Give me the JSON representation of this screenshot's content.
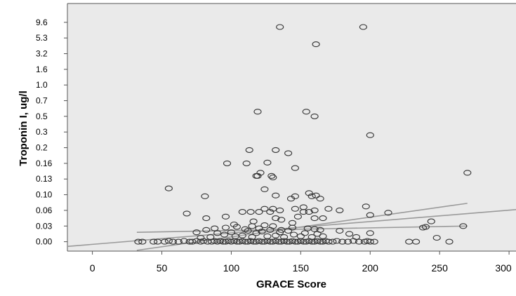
{
  "colors": {
    "plot_background": "#eaeaea",
    "frame": "#555555",
    "marker": "#333333",
    "fit_lines": "#9a9a9a",
    "text": "#000000"
  },
  "chart_data": {
    "type": "scatter",
    "title": "",
    "xlabel": "GRACE Score",
    "ylabel": "Troponin I, ug/l",
    "grid": false,
    "legend": "none",
    "marker": "open-circle",
    "xlim": [
      -18,
      305
    ],
    "xticks": [
      0,
      50,
      100,
      150,
      200,
      250,
      300
    ],
    "ytick_labels": [
      "0.00",
      "0.03",
      "0.06",
      "0.10",
      "0.13",
      "0.16",
      "0.2",
      "0.3",
      "0.5",
      "0.7",
      "1.0",
      "1.6",
      "3.2",
      "5.3",
      "9.6"
    ],
    "y_scale_note": "y axis is ordinal: equally spaced tick labels; y values below are expressed in tick-index units (0 = 0.00, 14 = 9.6)",
    "ylim_index": [
      -0.6,
      15.2
    ],
    "points": [
      [
        33,
        0
      ],
      [
        36,
        0
      ],
      [
        44,
        0
      ],
      [
        47,
        0
      ],
      [
        52,
        0
      ],
      [
        55,
        0.05
      ],
      [
        58,
        0
      ],
      [
        62,
        0
      ],
      [
        66,
        0.05
      ],
      [
        70,
        0
      ],
      [
        72,
        0
      ],
      [
        75,
        0.05
      ],
      [
        78,
        0
      ],
      [
        80,
        0.05
      ],
      [
        83,
        0
      ],
      [
        86,
        0
      ],
      [
        88,
        0.05
      ],
      [
        90,
        0
      ],
      [
        92,
        0.05
      ],
      [
        94,
        0
      ],
      [
        96,
        0
      ],
      [
        98,
        0.05
      ],
      [
        100,
        0
      ],
      [
        102,
        0.05
      ],
      [
        104,
        0
      ],
      [
        106,
        0
      ],
      [
        108,
        0.05
      ],
      [
        110,
        0
      ],
      [
        112,
        0
      ],
      [
        114,
        0.05
      ],
      [
        116,
        0
      ],
      [
        118,
        0
      ],
      [
        120,
        0.05
      ],
      [
        122,
        0
      ],
      [
        124,
        0
      ],
      [
        126,
        0.05
      ],
      [
        128,
        0
      ],
      [
        130,
        0
      ],
      [
        132,
        0.05
      ],
      [
        134,
        0
      ],
      [
        136,
        0
      ],
      [
        138,
        0.05
      ],
      [
        140,
        0
      ],
      [
        142,
        0
      ],
      [
        144,
        0.05
      ],
      [
        146,
        0
      ],
      [
        148,
        0
      ],
      [
        150,
        0.05
      ],
      [
        152,
        0
      ],
      [
        154,
        0
      ],
      [
        156,
        0.05
      ],
      [
        158,
        0
      ],
      [
        160,
        0
      ],
      [
        162,
        0.05
      ],
      [
        164,
        0
      ],
      [
        166,
        0
      ],
      [
        168,
        0.05
      ],
      [
        170,
        0
      ],
      [
        173,
        0
      ],
      [
        176,
        0.05
      ],
      [
        180,
        0
      ],
      [
        184,
        0
      ],
      [
        188,
        0.05
      ],
      [
        192,
        0
      ],
      [
        196,
        0
      ],
      [
        198,
        0.05
      ],
      [
        200,
        0
      ],
      [
        203,
        0
      ],
      [
        228,
        0
      ],
      [
        233,
        0
      ],
      [
        257,
        0
      ],
      [
        78,
        0.25
      ],
      [
        85,
        0.3
      ],
      [
        90,
        0.55
      ],
      [
        95,
        0.45
      ],
      [
        100,
        0.6
      ],
      [
        103,
        0.35
      ],
      [
        108,
        0.4
      ],
      [
        112,
        0.7
      ],
      [
        115,
        0.3
      ],
      [
        118,
        0.55
      ],
      [
        122,
        0.65
      ],
      [
        126,
        0.35
      ],
      [
        128,
        0.75
      ],
      [
        132,
        0.4
      ],
      [
        135,
        0.6
      ],
      [
        138,
        0.3
      ],
      [
        141,
        0.7
      ],
      [
        145,
        0.45
      ],
      [
        150,
        0.35
      ],
      [
        153,
        0.55
      ],
      [
        158,
        0.3
      ],
      [
        162,
        0.5
      ],
      [
        166,
        0.35
      ],
      [
        178,
        0.7
      ],
      [
        185,
        0.5
      ],
      [
        190,
        0.3
      ],
      [
        248,
        0.25
      ],
      [
        75,
        0.6
      ],
      [
        82,
        0.75
      ],
      [
        88,
        0.85
      ],
      [
        96,
        0.9
      ],
      [
        104,
        0.95
      ],
      [
        110,
        0.8
      ],
      [
        115,
        1.0
      ],
      [
        120,
        0.85
      ],
      [
        124,
        1.05
      ],
      [
        130,
        1.0
      ],
      [
        136,
        0.75
      ],
      [
        144,
        0.9
      ],
      [
        155,
        0.85
      ],
      [
        160,
        0.8
      ],
      [
        164,
        0.75
      ],
      [
        200,
        0.55
      ],
      [
        238,
        0.9
      ],
      [
        240,
        0.95
      ],
      [
        267,
        1.0
      ],
      [
        82,
        1.5
      ],
      [
        96,
        1.6
      ],
      [
        102,
        1.1
      ],
      [
        108,
        1.9
      ],
      [
        116,
        1.3
      ],
      [
        120,
        1.9
      ],
      [
        124,
        2.1
      ],
      [
        128,
        1.9
      ],
      [
        132,
        1.5
      ],
      [
        136,
        1.4
      ],
      [
        144,
        1.2
      ],
      [
        148,
        1.6
      ],
      [
        152,
        2.2
      ],
      [
        156,
        1.9
      ],
      [
        160,
        1.5
      ],
      [
        166,
        1.5
      ],
      [
        178,
        2.0
      ],
      [
        244,
        1.3
      ],
      [
        114,
        1.9
      ],
      [
        130,
        2.1
      ],
      [
        135,
        2.0
      ],
      [
        146,
        2.1
      ],
      [
        152,
        1.9
      ],
      [
        160,
        2.0
      ],
      [
        170,
        2.1
      ],
      [
        200,
        1.7
      ],
      [
        81,
        2.9
      ],
      [
        132,
        2.95
      ],
      [
        156,
        3.1
      ],
      [
        158,
        2.9
      ],
      [
        164,
        2.75
      ],
      [
        197,
        2.25
      ],
      [
        213,
        1.85
      ],
      [
        146,
        2.9
      ],
      [
        143,
        2.75
      ],
      [
        161,
        2.95
      ],
      [
        55,
        3.4
      ],
      [
        68,
        1.8
      ],
      [
        118,
        4.2
      ],
      [
        119,
        4.2
      ],
      [
        121,
        4.4
      ],
      [
        124,
        3.35
      ],
      [
        130,
        4.1
      ],
      [
        97,
        5.0
      ],
      [
        111,
        5.0
      ],
      [
        113,
        5.85
      ],
      [
        126,
        5.05
      ],
      [
        129,
        4.2
      ],
      [
        132,
        5.85
      ],
      [
        141,
        5.65
      ],
      [
        146,
        4.7
      ],
      [
        200,
        6.8
      ],
      [
        270,
        4.4
      ],
      [
        119,
        8.3
      ],
      [
        154,
        8.3
      ],
      [
        160,
        8.0
      ],
      [
        161,
        12.6
      ],
      [
        135,
        13.7
      ],
      [
        195,
        13.7
      ]
    ],
    "fit_lines": [
      {
        "x": [
          -18,
          305
        ],
        "y": [
          -0.3,
          2.05
        ]
      },
      {
        "x": [
          32,
          270
        ],
        "y": [
          -0.55,
          2.45
        ]
      },
      {
        "x": [
          32,
          270
        ],
        "y": [
          0.6,
          1.0
        ]
      }
    ]
  }
}
